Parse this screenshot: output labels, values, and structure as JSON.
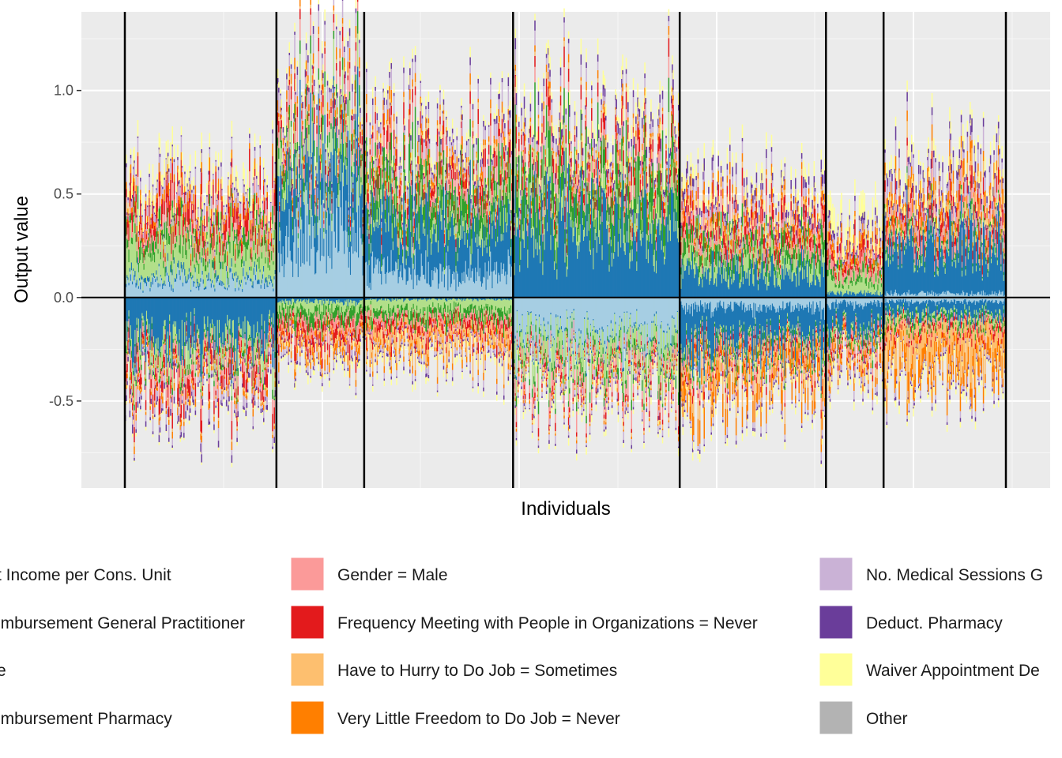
{
  "chart_data": {
    "type": "area",
    "xlabel": "Individuals",
    "ylabel": "Output value",
    "ylim": [
      -0.92,
      1.38
    ],
    "yticks": [
      {
        "value": -0.5,
        "label": "-0.5"
      },
      {
        "value": 0.0,
        "label": "0.0"
      },
      {
        "value": 0.5,
        "label": "0.5"
      },
      {
        "value": 1.0,
        "label": "1.0"
      }
    ],
    "grid": true,
    "legend_position": "bottom",
    "cluster_boundaries": [
      0,
      171,
      270,
      438,
      626,
      791,
      856,
      994
    ],
    "n_individuals": 994,
    "series": [
      {
        "name": "t Income per Cons. Unit",
        "color": "#A6CEE3"
      },
      {
        "name": "imbursement General Practitioner",
        "color": "#1F78B4"
      },
      {
        "name": "e",
        "color": "#B2DF8A"
      },
      {
        "name": "imbursement Pharmacy",
        "color": "#33A02C"
      },
      {
        "name": "Gender = Male",
        "color": "#FB9A99"
      },
      {
        "name": "Frequency Meeting with People in Organizations = Never",
        "color": "#E31A1C"
      },
      {
        "name": "Have to Hurry to Do Job = Sometimes",
        "color": "#FDBF6F"
      },
      {
        "name": "Very Little Freedom to Do Job = Never",
        "color": "#FF7F00"
      },
      {
        "name": "No. Medical Sessions G",
        "color": "#CAB2D6"
      },
      {
        "name": "Deduct. Pharmacy",
        "color": "#6A3D9A"
      },
      {
        "name": "Waiver Appointment De",
        "color": "#FFFF99"
      },
      {
        "name": "Other",
        "color": "#B3B3B3"
      }
    ],
    "cluster_profiles": [
      {
        "pos": [
          0.08,
          0.02,
          0.14,
          0.05,
          0.05,
          0.07,
          0.0,
          0.03,
          0.04,
          0.01,
          0.05,
          0.0
        ],
        "neg": [
          0.0,
          0.2,
          0.07,
          0.02,
          0.05,
          0.05,
          0.01,
          0.02,
          0.03,
          0.02,
          0.01,
          0.0
        ]
      },
      {
        "pos": [
          0.3,
          0.28,
          0.1,
          0.06,
          0.06,
          0.04,
          0.01,
          0.03,
          0.05,
          0.02,
          0.03,
          0.0
        ],
        "neg": [
          0.0,
          0.02,
          0.04,
          0.05,
          0.04,
          0.04,
          0.02,
          0.03,
          0.02,
          0.01,
          0.02,
          0.0
        ]
      },
      {
        "pos": [
          0.12,
          0.22,
          0.06,
          0.12,
          0.05,
          0.05,
          0.02,
          0.03,
          0.05,
          0.02,
          0.03,
          0.0
        ],
        "neg": [
          0.0,
          0.01,
          0.05,
          0.04,
          0.03,
          0.03,
          0.06,
          0.02,
          0.02,
          0.01,
          0.02,
          0.0
        ]
      },
      {
        "pos": [
          0.0,
          0.34,
          0.08,
          0.14,
          0.05,
          0.05,
          0.02,
          0.02,
          0.04,
          0.03,
          0.04,
          0.0
        ],
        "neg": [
          0.18,
          0.01,
          0.1,
          0.03,
          0.05,
          0.02,
          0.01,
          0.01,
          0.02,
          0.01,
          0.02,
          0.0
        ]
      },
      {
        "pos": [
          0.0,
          0.12,
          0.07,
          0.06,
          0.05,
          0.05,
          0.02,
          0.03,
          0.03,
          0.03,
          0.04,
          0.0
        ],
        "neg": [
          0.05,
          0.16,
          0.02,
          0.02,
          0.03,
          0.02,
          0.05,
          0.07,
          0.02,
          0.01,
          0.02,
          0.0
        ]
      },
      {
        "pos": [
          0.0,
          0.02,
          0.07,
          0.03,
          0.05,
          0.04,
          0.01,
          0.03,
          0.03,
          0.02,
          0.07,
          0.0
        ],
        "neg": [
          0.03,
          0.12,
          0.02,
          0.02,
          0.03,
          0.02,
          0.03,
          0.03,
          0.02,
          0.01,
          0.02,
          0.0
        ]
      },
      {
        "pos": [
          0.02,
          0.24,
          0.03,
          0.02,
          0.05,
          0.05,
          0.04,
          0.05,
          0.06,
          0.03,
          0.04,
          0.0
        ],
        "neg": [
          0.02,
          0.06,
          0.02,
          0.02,
          0.02,
          0.02,
          0.12,
          0.07,
          0.02,
          0.01,
          0.02,
          0.0
        ]
      }
    ]
  }
}
